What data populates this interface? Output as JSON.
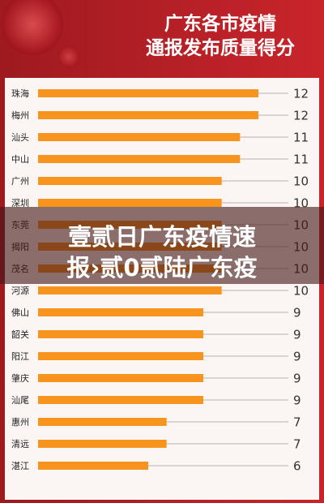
{
  "chart_data": {
    "type": "hbar",
    "title": [
      "广东各市疫情",
      "通报发布质量得分"
    ],
    "categories": [
      "珠海",
      "梅州",
      "汕头",
      "中山",
      "广州",
      "深圳",
      "东莞",
      "揭阳",
      "茂名",
      "河源",
      "佛山",
      "韶关",
      "阳江",
      "肇庆",
      "汕尾",
      "惠州",
      "清远",
      "湛江"
    ],
    "values": [
      12,
      12,
      11,
      11,
      10,
      10,
      10,
      10,
      10,
      10,
      9,
      9,
      9,
      9,
      9,
      7,
      7,
      6
    ],
    "color": "#f7941d",
    "xlim": [
      0,
      12
    ]
  },
  "overlay": {
    "lines": [
      "壹贰日广东疫情速",
      "报›贰0贰陆广东疫"
    ]
  }
}
